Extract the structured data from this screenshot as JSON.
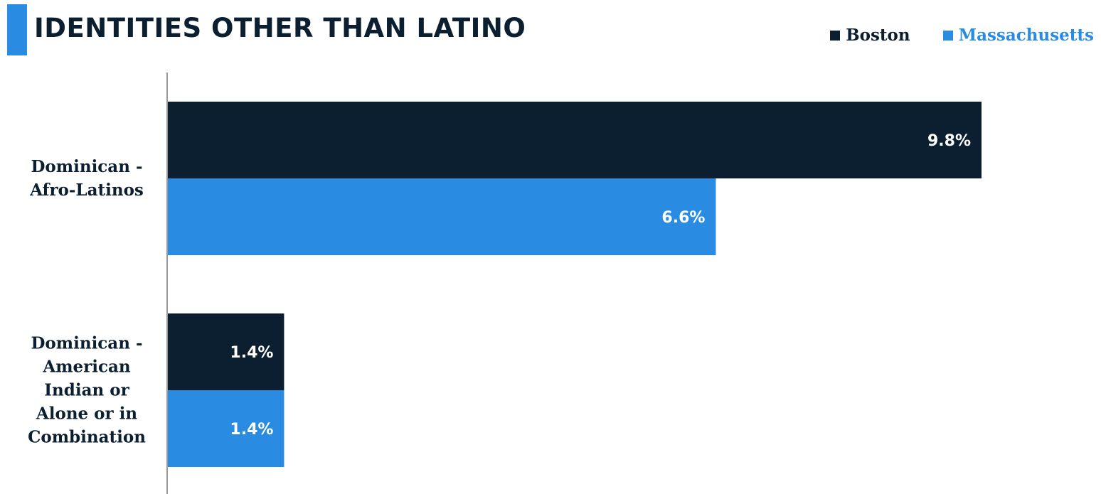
{
  "title": "IDENTITIES OTHER THAN LATINO",
  "colors": {
    "accent": "#2a8be3",
    "boston": "#0b1f31",
    "massachusetts": "#2a8be3",
    "axis": "#9a9a9a",
    "text": "#0b1f31",
    "bar_label": "#ffffff"
  },
  "legend": [
    {
      "name": "Boston",
      "color": "#0b1f31"
    },
    {
      "name": "Massachusetts",
      "color": "#2a8be3"
    }
  ],
  "chart_data": {
    "type": "bar",
    "orientation": "horizontal",
    "title": "IDENTITIES OTHER THAN LATINO",
    "xlabel": "",
    "ylabel": "",
    "xlim": [
      0,
      9.8
    ],
    "grid": false,
    "legend_position": "top-right",
    "categories": [
      [
        "Dominican -",
        "Afro-Latinos"
      ],
      [
        "Dominican -",
        "American",
        "Indian or",
        "Alone or in",
        "Combination"
      ]
    ],
    "series": [
      {
        "name": "Boston",
        "values": [
          9.8,
          1.4
        ],
        "labels": [
          "9.8%",
          "1.4%"
        ],
        "color": "#0b1f31"
      },
      {
        "name": "Massachusetts",
        "values": [
          6.6,
          1.4
        ],
        "labels": [
          "6.6%",
          "1.4%"
        ],
        "color": "#2a8be3"
      }
    ]
  }
}
